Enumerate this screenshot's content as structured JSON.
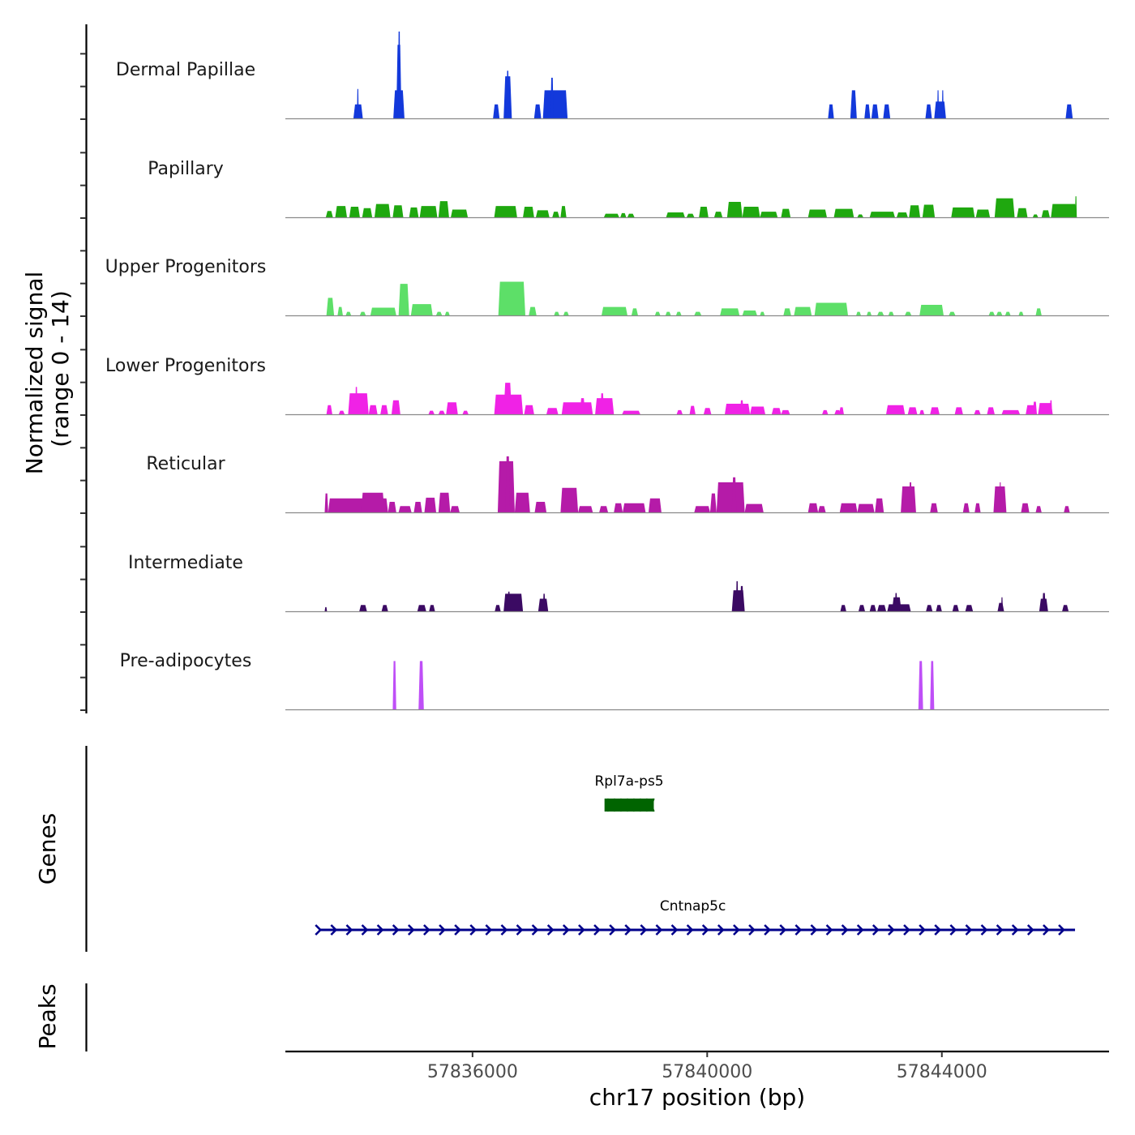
{
  "chart_data": {
    "type": "area",
    "title": "",
    "xlabel": "chr17 position (bp)",
    "ylabel": "Normalized signal\n(range 0 - 14)",
    "ylabel_lines": [
      "Normalized signal",
      "(range 0 - 14)"
    ],
    "ylim": [
      0,
      14
    ],
    "xlim": [
      57832810,
      57846850
    ],
    "x_ticks": [
      57836000,
      57840000,
      57844000
    ],
    "x_tick_labels": [
      "57836000",
      "57840000",
      "57844000"
    ],
    "grid": false,
    "legend": "none",
    "series": [
      {
        "name": "Dermal Papillae",
        "color": "#1339db",
        "blocks": [
          [
            57833970,
            57834130,
            2
          ],
          [
            57834030,
            57834060,
            4.2
          ],
          [
            57834650,
            57834840,
            4
          ],
          [
            57834700,
            57834790,
            10.5
          ],
          [
            57834730,
            57834770,
            12.4
          ],
          [
            57836350,
            57836460,
            2
          ],
          [
            57836530,
            57836670,
            6
          ],
          [
            57836580,
            57836620,
            6.8
          ],
          [
            57837050,
            57837170,
            2
          ],
          [
            57837200,
            57837620,
            4
          ],
          [
            57837330,
            57837380,
            5.8
          ],
          [
            57842060,
            57842160,
            2
          ],
          [
            57842440,
            57842550,
            4
          ],
          [
            57842680,
            57842780,
            2
          ],
          [
            57842800,
            57842920,
            2
          ],
          [
            57843000,
            57843120,
            2
          ],
          [
            57843720,
            57843830,
            2
          ],
          [
            57843870,
            57844070,
            2.4
          ],
          [
            57843920,
            57843950,
            4
          ],
          [
            57844000,
            57844030,
            4
          ],
          [
            57846110,
            57846230,
            2
          ]
        ]
      },
      {
        "name": "Papillary",
        "color": "#1fa80f",
        "blocks": [
          [
            57833500,
            57833620,
            0.9
          ],
          [
            57833660,
            57833860,
            1.6
          ],
          [
            57833900,
            57834080,
            1.5
          ],
          [
            57834120,
            57834290,
            1.3
          ],
          [
            57834330,
            57834600,
            1.9
          ],
          [
            57834640,
            57834820,
            1.7
          ],
          [
            57834920,
            57835080,
            1.4
          ],
          [
            57835100,
            57835400,
            1.6
          ],
          [
            57835420,
            57835600,
            2.3
          ],
          [
            57835630,
            57835920,
            1.1
          ],
          [
            57836370,
            57836760,
            1.6
          ],
          [
            57836860,
            57837050,
            1.5
          ],
          [
            57837080,
            57837310,
            1.0
          ],
          [
            57837360,
            57837480,
            0.8
          ],
          [
            57837500,
            57837600,
            1.6
          ],
          [
            57838240,
            57838500,
            0.5
          ],
          [
            57838520,
            57838620,
            0.6
          ],
          [
            57838640,
            57838760,
            0.5
          ],
          [
            57839300,
            57839620,
            0.7
          ],
          [
            57839650,
            57839780,
            0.5
          ],
          [
            57839860,
            57840020,
            1.5
          ],
          [
            57840120,
            57840260,
            0.8
          ],
          [
            57840340,
            57840600,
            2.2
          ],
          [
            57840600,
            57840900,
            1.5
          ],
          [
            57840900,
            57841200,
            0.8
          ],
          [
            57841260,
            57841420,
            1.2
          ],
          [
            57841720,
            57842040,
            1.1
          ],
          [
            57842160,
            57842500,
            1.2
          ],
          [
            57842560,
            57842660,
            0.4
          ],
          [
            57842770,
            57843200,
            0.8
          ],
          [
            57843230,
            57843420,
            0.7
          ],
          [
            57843440,
            57843630,
            1.7
          ],
          [
            57843670,
            57843880,
            1.8
          ],
          [
            57844160,
            57844560,
            1.4
          ],
          [
            57844580,
            57844820,
            1.1
          ],
          [
            57844900,
            57845240,
            2.7
          ],
          [
            57845280,
            57845460,
            1.3
          ],
          [
            57845550,
            57845640,
            0.4
          ],
          [
            57845700,
            57845840,
            1.0
          ],
          [
            57845860,
            57846300,
            1.9
          ],
          [
            57846270,
            57846300,
            3.0
          ]
        ]
      },
      {
        "name": "Upper Progenitors",
        "color": "#5ddf68",
        "blocks": [
          [
            57833510,
            57833640,
            2.5
          ],
          [
            57833700,
            57833790,
            1.2
          ],
          [
            57833840,
            57833930,
            0.5
          ],
          [
            57834080,
            57834180,
            0.5
          ],
          [
            57834260,
            57834700,
            1.1
          ],
          [
            57834740,
            57834920,
            4.5
          ],
          [
            57834950,
            57835320,
            1.6
          ],
          [
            57835380,
            57835480,
            0.5
          ],
          [
            57835530,
            57835610,
            0.5
          ],
          [
            57836440,
            57836900,
            4.8
          ],
          [
            57836960,
            57837090,
            1.2
          ],
          [
            57837390,
            57837480,
            0.5
          ],
          [
            57837550,
            57837640,
            0.5
          ],
          [
            57838200,
            57838640,
            1.2
          ],
          [
            57838710,
            57838820,
            1.0
          ],
          [
            57839110,
            57839200,
            0.5
          ],
          [
            57839290,
            57839380,
            0.5
          ],
          [
            57839470,
            57839560,
            0.5
          ],
          [
            57839780,
            57839900,
            0.5
          ],
          [
            57840220,
            57840550,
            1.0
          ],
          [
            57840600,
            57840850,
            0.7
          ],
          [
            57840900,
            57840980,
            0.5
          ],
          [
            57841300,
            57841430,
            1.0
          ],
          [
            57841480,
            57841780,
            1.2
          ],
          [
            57841830,
            57842400,
            1.8
          ],
          [
            57842540,
            57842620,
            0.5
          ],
          [
            57842720,
            57842800,
            0.5
          ],
          [
            57842900,
            57843010,
            0.5
          ],
          [
            57843090,
            57843180,
            0.5
          ],
          [
            57843370,
            57843480,
            0.5
          ],
          [
            57843620,
            57844030,
            1.5
          ],
          [
            57844120,
            57844230,
            0.5
          ],
          [
            57844800,
            57844900,
            0.5
          ],
          [
            57844930,
            57845030,
            0.5
          ],
          [
            57845080,
            57845170,
            0.5
          ],
          [
            57845310,
            57845390,
            0.5
          ],
          [
            57845600,
            57845700,
            1.0
          ]
        ]
      },
      {
        "name": "Lower Progenitors",
        "color": "#f022e6",
        "blocks": [
          [
            57833510,
            57833610,
            1.3
          ],
          [
            57833720,
            57833820,
            0.5
          ],
          [
            57833880,
            57834230,
            3.0
          ],
          [
            57834000,
            57834040,
            3.9
          ],
          [
            57834230,
            57834380,
            1.3
          ],
          [
            57834430,
            57834560,
            1.3
          ],
          [
            57834620,
            57834770,
            2.0
          ],
          [
            57835250,
            57835350,
            0.5
          ],
          [
            57835420,
            57835530,
            0.5
          ],
          [
            57835550,
            57835750,
            1.7
          ],
          [
            57835830,
            57835930,
            0.5
          ],
          [
            57836370,
            57836860,
            2.8
          ],
          [
            57836530,
            57836670,
            4.5
          ],
          [
            57836880,
            57837050,
            1.3
          ],
          [
            57837260,
            57837460,
            0.9
          ],
          [
            57837520,
            57838050,
            1.7
          ],
          [
            57837830,
            57837920,
            2.3
          ],
          [
            57838090,
            57838410,
            2.3
          ],
          [
            57838180,
            57838240,
            3.0
          ],
          [
            57838550,
            57838860,
            0.5
          ],
          [
            57839480,
            57839580,
            0.6
          ],
          [
            57839700,
            57839800,
            1.2
          ],
          [
            57839940,
            57840070,
            0.9
          ],
          [
            57840300,
            57840730,
            1.5
          ],
          [
            57840560,
            57840620,
            2.0
          ],
          [
            57840730,
            57840990,
            1.1
          ],
          [
            57841100,
            57841260,
            0.9
          ],
          [
            57841260,
            57841410,
            0.6
          ],
          [
            57841960,
            57842060,
            0.6
          ],
          [
            57842170,
            57842280,
            0.6
          ],
          [
            57842250,
            57842330,
            1.0
          ],
          [
            57843050,
            57843370,
            1.3
          ],
          [
            57843420,
            57843580,
            1.0
          ],
          [
            57843620,
            57843700,
            0.6
          ],
          [
            57843800,
            57843960,
            1.0
          ],
          [
            57844220,
            57844360,
            1.0
          ],
          [
            57844550,
            57844660,
            0.6
          ],
          [
            57844770,
            57844900,
            1.0
          ],
          [
            57845020,
            57845330,
            0.6
          ],
          [
            57845430,
            57845620,
            1.3
          ],
          [
            57845550,
            57845620,
            1.8
          ],
          [
            57845640,
            57845890,
            1.6
          ],
          [
            57845840,
            57845880,
            2.0
          ]
        ]
      },
      {
        "name": "Reticular",
        "color": "#b51ba8",
        "blocks": [
          [
            57833480,
            57833540,
            2.7
          ],
          [
            57833540,
            57834560,
            2.0
          ],
          [
            57834100,
            57834500,
            2.8
          ],
          [
            57834560,
            57834700,
            1.5
          ],
          [
            57834740,
            57834960,
            0.9
          ],
          [
            57835000,
            57835140,
            1.5
          ],
          [
            57835180,
            57835380,
            2.1
          ],
          [
            57835420,
            57835620,
            2.8
          ],
          [
            57835620,
            57835780,
            0.9
          ],
          [
            57836430,
            57836720,
            7.3
          ],
          [
            57836560,
            57836640,
            8.0
          ],
          [
            57836720,
            57836980,
            2.8
          ],
          [
            57837060,
            57837260,
            1.5
          ],
          [
            57837500,
            57837800,
            3.5
          ],
          [
            57837800,
            57838050,
            0.9
          ],
          [
            57838160,
            57838310,
            0.9
          ],
          [
            57838410,
            57838560,
            1.3
          ],
          [
            57838560,
            57838950,
            1.3
          ],
          [
            57839000,
            57839220,
            2.0
          ],
          [
            57839780,
            57840050,
            0.9
          ],
          [
            57840050,
            57840160,
            2.7
          ],
          [
            57840160,
            57840640,
            4.3
          ],
          [
            57840420,
            57840500,
            5.0
          ],
          [
            57840640,
            57840960,
            1.2
          ],
          [
            57841720,
            57841890,
            1.3
          ],
          [
            57841890,
            57842020,
            0.9
          ],
          [
            57842260,
            57842560,
            1.3
          ],
          [
            57842560,
            57842850,
            1.2
          ],
          [
            57842860,
            57843010,
            2.0
          ],
          [
            57843300,
            57843560,
            3.7
          ],
          [
            57843440,
            57843490,
            4.3
          ],
          [
            57843800,
            57843930,
            1.3
          ],
          [
            57844360,
            57844470,
            1.3
          ],
          [
            57844560,
            57844660,
            1.3
          ],
          [
            57844880,
            57845100,
            3.7
          ],
          [
            57844980,
            57845010,
            4.3
          ],
          [
            57845350,
            57845490,
            1.3
          ],
          [
            57845600,
            57845700,
            0.9
          ],
          [
            57846080,
            57846180,
            0.9
          ]
        ]
      },
      {
        "name": "Intermediate",
        "color": "#3b0a63",
        "blocks": [
          [
            57833480,
            57833520,
            0.6
          ],
          [
            57834070,
            57834200,
            0.9
          ],
          [
            57834450,
            57834560,
            0.9
          ],
          [
            57835060,
            57835210,
            0.9
          ],
          [
            57835260,
            57835360,
            0.9
          ],
          [
            57836380,
            57836480,
            0.9
          ],
          [
            57836530,
            57836860,
            2.5
          ],
          [
            57836600,
            57836640,
            2.8
          ],
          [
            57837120,
            57837290,
            1.8
          ],
          [
            57837200,
            57837240,
            2.5
          ],
          [
            57840420,
            57840640,
            3.0
          ],
          [
            57840490,
            57840530,
            4.3
          ],
          [
            57840560,
            57840620,
            3.6
          ],
          [
            57842270,
            57842370,
            0.9
          ],
          [
            57842580,
            57842690,
            0.9
          ],
          [
            57842770,
            57842880,
            0.9
          ],
          [
            57842900,
            57843050,
            0.9
          ],
          [
            57843070,
            57843470,
            1.0
          ],
          [
            57843150,
            57843310,
            2.0
          ],
          [
            57843200,
            57843240,
            2.6
          ],
          [
            57843730,
            57843840,
            0.9
          ],
          [
            57843900,
            57844000,
            0.9
          ],
          [
            57844180,
            57844290,
            0.9
          ],
          [
            57844400,
            57844530,
            0.9
          ],
          [
            57844950,
            57845060,
            1.2
          ],
          [
            57845010,
            57845040,
            2.0
          ],
          [
            57845660,
            57845810,
            1.8
          ],
          [
            57845710,
            57845770,
            2.6
          ],
          [
            57846050,
            57846160,
            0.9
          ]
        ]
      },
      {
        "name": "Pre-adipocytes",
        "color": "#bf4ff7",
        "blocks": [
          [
            57834640,
            57834700,
            6.9
          ],
          [
            57835080,
            57835170,
            6.9
          ],
          [
            57843600,
            57843680,
            6.9
          ],
          [
            57843800,
            57843870,
            6.9
          ]
        ]
      }
    ],
    "genes": [
      {
        "name": "Rpl7a-ps5",
        "start": 57838250,
        "end": 57839090,
        "strand": "-",
        "color": "#006400",
        "type": "block"
      },
      {
        "name": "Cntnap5c",
        "start": 57833380,
        "end": 57846270,
        "strand": "+",
        "color": "#00008b",
        "type": "line"
      }
    ],
    "panel_labels": {
      "genes": "Genes",
      "peaks": "Peaks"
    }
  }
}
